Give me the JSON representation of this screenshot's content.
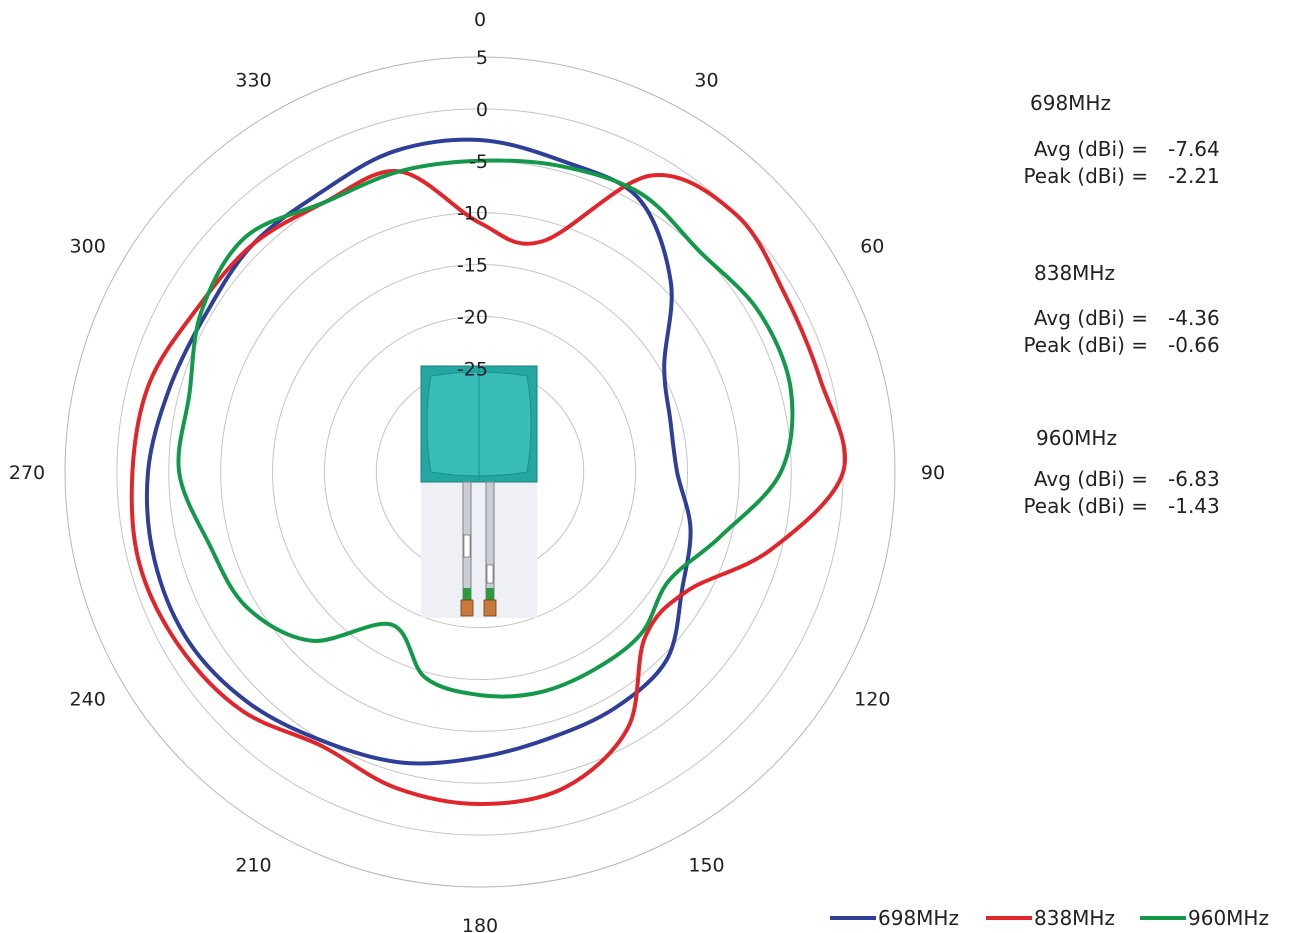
{
  "chart_data": {
    "type": "polar-line",
    "angle_labels": [
      "0",
      "30",
      "60",
      "90",
      "120",
      "150",
      "180",
      "210",
      "240",
      "270",
      "300",
      "330"
    ],
    "radial_ticks": [
      "5",
      "0",
      "-5",
      "-10",
      "-15",
      "-20",
      "-25"
    ],
    "radial_range": [
      -35,
      5
    ],
    "series": [
      {
        "name": "698MHz",
        "color": "#2e3f99",
        "angles": [
          0,
          15,
          30,
          45,
          60,
          75,
          90,
          105,
          120,
          135,
          150,
          165,
          180,
          195,
          210,
          225,
          240,
          255,
          270,
          285,
          300,
          315,
          330,
          345
        ],
        "values": [
          -3,
          -4,
          -4.5,
          -9,
          -14.5,
          -16,
          -16,
          -14,
          -12.5,
          -9.5,
          -8.8,
          -8.5,
          -7.5,
          -6,
          -5,
          -3.5,
          -2.5,
          -2.5,
          -3,
          -4,
          -4.5,
          -4,
          -4,
          -3
        ]
      },
      {
        "name": "838MHz",
        "color": "#e0262b",
        "angles": [
          0,
          15,
          30,
          45,
          60,
          75,
          90,
          105,
          120,
          135,
          150,
          165,
          180,
          195,
          210,
          225,
          240,
          255,
          270,
          285,
          300,
          315,
          330,
          345
        ],
        "values": [
          -11,
          -12,
          -2,
          0,
          -1,
          -1,
          0,
          -6,
          -12,
          -12.5,
          -6.5,
          -3.5,
          -3,
          -3.5,
          -4.5,
          -2.5,
          -1.5,
          -1,
          -1.5,
          -2,
          -3.5,
          -4,
          -5,
          -5
        ]
      },
      {
        "name": "960MHz",
        "color": "#14994a",
        "angles": [
          0,
          15,
          30,
          45,
          60,
          75,
          90,
          105,
          120,
          135,
          150,
          165,
          180,
          195,
          210,
          225,
          240,
          255,
          270,
          285,
          300,
          315,
          330,
          345
        ],
        "values": [
          -5,
          -4.5,
          -4,
          -5,
          -4,
          -4,
          -6,
          -11,
          -14,
          -13,
          -13,
          -13,
          -13.5,
          -14.5,
          -18,
          -12,
          -9,
          -8,
          -6,
          -6,
          -4,
          -3,
          -5,
          -5
        ]
      }
    ],
    "stats": [
      {
        "freq": "698MHz",
        "avg_label": "Avg (dBi) =",
        "avg": "-7.64",
        "peak_label": "Peak (dBi) =",
        "peak": "-2.21"
      },
      {
        "freq": "838MHz",
        "avg_label": "Avg (dBi) =",
        "avg": "-4.36",
        "peak_label": "Peak (dBi) =",
        "peak": "-0.66"
      },
      {
        "freq": "960MHz",
        "avg_label": "Avg (dBi) =",
        "avg": "-6.83",
        "peak_label": "Peak (dBi) =",
        "peak": "-1.43"
      }
    ],
    "legend": [
      "698MHz",
      "838MHz",
      "960MHz"
    ],
    "legend_position": "bottom-right",
    "grid": true,
    "inset_image": "antenna-product-photo"
  }
}
